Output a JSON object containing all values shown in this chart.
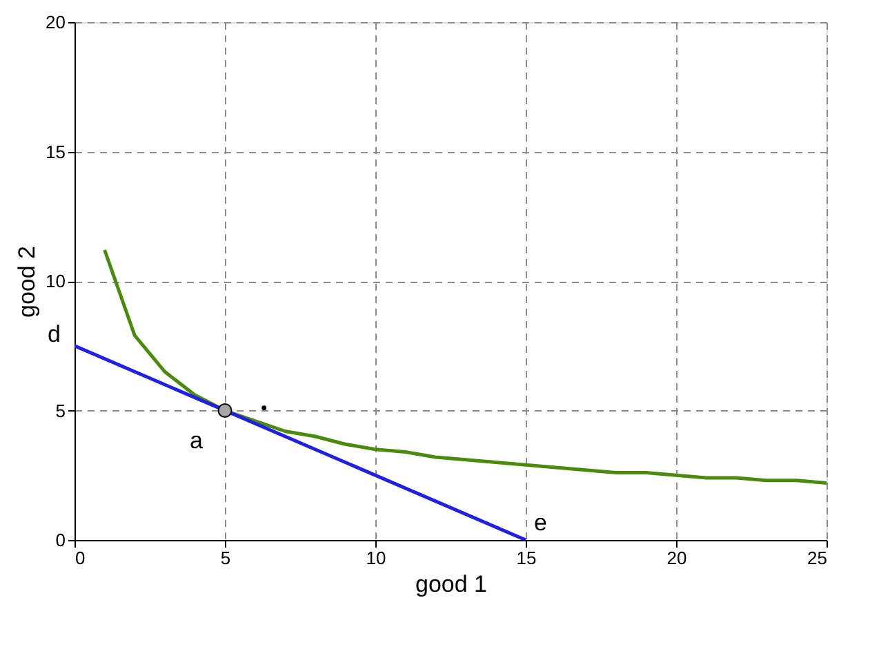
{
  "chart_data": {
    "type": "line",
    "xlabel": "good 1",
    "ylabel": "good  2",
    "xlim": [
      0,
      25
    ],
    "ylim": [
      0,
      20
    ],
    "xticks": [
      0,
      5,
      10,
      15,
      20,
      25
    ],
    "yticks": [
      0,
      5,
      10,
      15,
      20
    ],
    "grid": true,
    "marker": "none",
    "line_style": "solid",
    "series": [
      {
        "color": "#4a8a0c",
        "x": [
          1,
          2,
          3,
          4,
          5,
          6,
          7,
          8,
          9,
          10,
          11,
          12,
          13,
          14,
          15,
          16,
          17,
          18,
          19,
          20,
          21,
          22,
          23,
          24,
          25
        ],
        "values": [
          11.2,
          7.9,
          6.5,
          5.6,
          5.0,
          4.6,
          4.2,
          4.0,
          3.7,
          3.5,
          3.4,
          3.2,
          3.1,
          3.0,
          2.9,
          2.8,
          2.7,
          2.6,
          2.6,
          2.5,
          2.4,
          2.4,
          2.3,
          2.3,
          2.2
        ]
      },
      {
        "color": "#1f1fe6",
        "x": [
          0,
          15
        ],
        "values": [
          7.5,
          0
        ]
      },
      {
        "type": "scatter",
        "color": "#a6a6a6",
        "marker": "circle",
        "x": [
          5
        ],
        "values": [
          5
        ]
      },
      {
        "type": "scatter",
        "color": "#000000",
        "marker": "circle",
        "x": [
          6.3
        ],
        "values": [
          5.1
        ]
      }
    ],
    "annotations": [
      {
        "text": "d",
        "x": 0,
        "y": 7.5
      },
      {
        "text": "a",
        "x": 5,
        "y": 5
      },
      {
        "text": "e",
        "x": 15,
        "y": 0
      }
    ]
  }
}
